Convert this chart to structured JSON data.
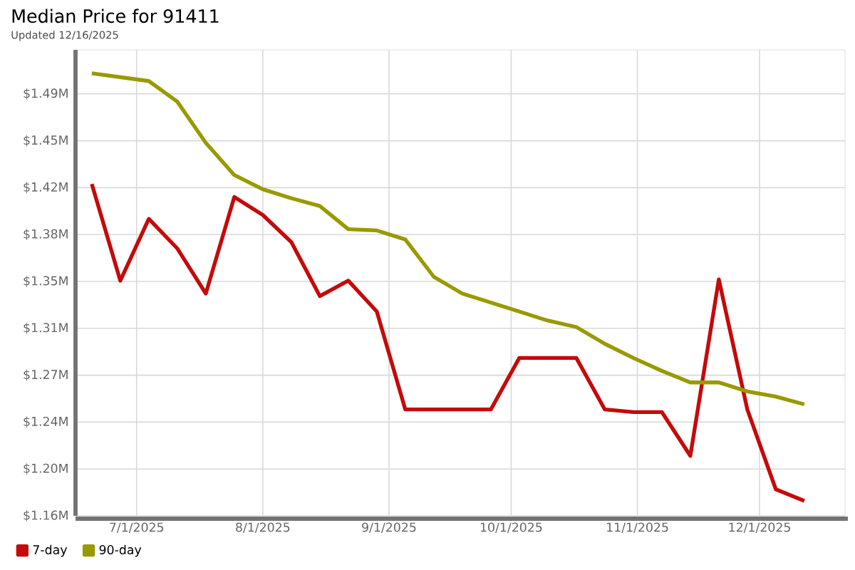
{
  "chart_data": {
    "type": "line",
    "title": "Median Price for 91411",
    "subtitle": "Updated 12/16/2025",
    "x": [
      "2025-06-20",
      "2025-06-27",
      "2025-07-04",
      "2025-07-11",
      "2025-07-18",
      "2025-07-25",
      "2025-08-01",
      "2025-08-08",
      "2025-08-15",
      "2025-08-22",
      "2025-08-29",
      "2025-09-05",
      "2025-09-12",
      "2025-09-19",
      "2025-09-26",
      "2025-10-03",
      "2025-10-10",
      "2025-10-17",
      "2025-10-24",
      "2025-10-31",
      "2025-11-07",
      "2025-11-14",
      "2025-11-21",
      "2025-11-28",
      "2025-12-05",
      "2025-12-12"
    ],
    "series": [
      {
        "name": "7-day",
        "color": "#c40a0a",
        "values": [
          1.421,
          1.346,
          1.394,
          1.371,
          1.336,
          1.411,
          1.397,
          1.376,
          1.334,
          1.346,
          1.322,
          1.246,
          1.246,
          1.246,
          1.246,
          1.286,
          1.286,
          1.286,
          1.246,
          1.244,
          1.244,
          1.21,
          1.347,
          1.246,
          1.184,
          1.175
        ]
      },
      {
        "name": "90-day",
        "color": "#999900",
        "values": [
          1.507,
          1.504,
          1.501,
          1.485,
          1.453,
          1.428,
          1.417,
          1.41,
          1.404,
          1.386,
          1.385,
          1.378,
          1.349,
          1.336,
          1.329,
          1.322,
          1.315,
          1.31,
          1.297,
          1.286,
          1.276,
          1.267,
          1.267,
          1.26,
          1.256,
          1.25
        ]
      }
    ],
    "xlim": [
      "2025-06-16",
      "2025-12-22"
    ],
    "xticks": [
      {
        "value": "2025-07-01",
        "label": "7/1/2025"
      },
      {
        "value": "2025-08-01",
        "label": "8/1/2025"
      },
      {
        "value": "2025-09-01",
        "label": "9/1/2025"
      },
      {
        "value": "2025-10-01",
        "label": "10/1/2025"
      },
      {
        "value": "2025-11-01",
        "label": "11/1/2025"
      },
      {
        "value": "2025-12-01",
        "label": "12/1/2025"
      }
    ],
    "ylim": [
      1.1634,
      1.5252
    ],
    "yticks": [
      {
        "value": 1.1634,
        "label": "$1.16M"
      },
      {
        "value": 1.1998,
        "label": "$1.20M"
      },
      {
        "value": 1.2362,
        "label": "$1.24M"
      },
      {
        "value": 1.2726,
        "label": "$1.27M"
      },
      {
        "value": 1.309,
        "label": "$1.31M"
      },
      {
        "value": 1.3454,
        "label": "$1.35M"
      },
      {
        "value": 1.3818,
        "label": "$1.38M"
      },
      {
        "value": 1.4182,
        "label": "$1.42M"
      },
      {
        "value": 1.4546,
        "label": "$1.45M"
      },
      {
        "value": 1.491,
        "label": "$1.49M"
      }
    ],
    "grid": true,
    "legend": "bottom left",
    "marker": "none",
    "line_style": "solid"
  }
}
